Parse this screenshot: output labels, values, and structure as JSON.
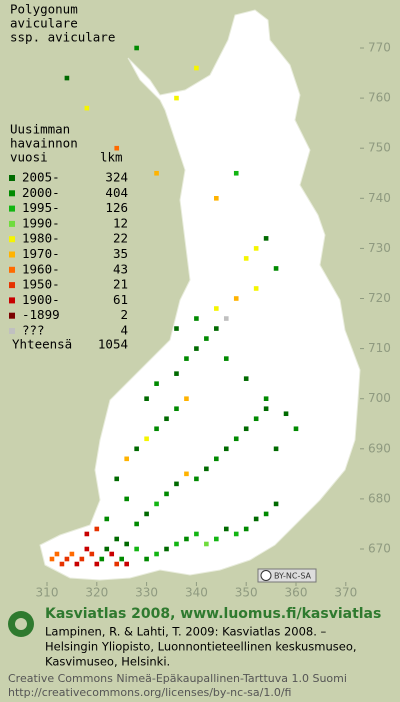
{
  "map": {
    "title": [
      "Polygonum",
      "aviculare",
      "ssp. aviculare"
    ],
    "legend_header": [
      "Uusimman",
      "havainnon",
      "vuosi"
    ],
    "count_header": "lkm",
    "legend": [
      {
        "period": "2005-",
        "count": 324,
        "color": "#006a00"
      },
      {
        "period": "2000-",
        "count": 404,
        "color": "#008a00"
      },
      {
        "period": "1995-",
        "count": 126,
        "color": "#12b512"
      },
      {
        "period": "1990-",
        "count": 12,
        "color": "#6fdc3c"
      },
      {
        "period": "1980-",
        "count": 22,
        "color": "#f5f500"
      },
      {
        "period": "1970-",
        "count": 35,
        "color": "#ffb300"
      },
      {
        "period": "1960-",
        "count": 43,
        "color": "#ff6a00"
      },
      {
        "period": "1950-",
        "count": 21,
        "color": "#e63200"
      },
      {
        "period": "1900-",
        "count": 61,
        "color": "#c80000"
      },
      {
        "period": "-1899",
        "count": 2,
        "color": "#7a0000"
      },
      {
        "period": "???",
        "count": 4,
        "color": "#c0c0c0"
      }
    ],
    "total_label": "Yhteensä",
    "total": 1054,
    "xticks": [
      310,
      320,
      330,
      340,
      350,
      360,
      370
    ],
    "yticks": [
      670,
      680,
      690,
      700,
      710,
      720,
      730,
      740,
      750,
      760,
      770
    ],
    "cells": [
      [
        311,
        668,
        6
      ],
      [
        312,
        669,
        6
      ],
      [
        313,
        667,
        7
      ],
      [
        314,
        668,
        7
      ],
      [
        315,
        669,
        6
      ],
      [
        316,
        667,
        8
      ],
      [
        317,
        668,
        7
      ],
      [
        318,
        670,
        8
      ],
      [
        319,
        669,
        7
      ],
      [
        320,
        667,
        8
      ],
      [
        321,
        668,
        1
      ],
      [
        322,
        670,
        0
      ],
      [
        323,
        669,
        8
      ],
      [
        324,
        667,
        7
      ],
      [
        325,
        668,
        1
      ],
      [
        326,
        667,
        8
      ],
      [
        318,
        673,
        8
      ],
      [
        320,
        674,
        7
      ],
      [
        322,
        676,
        1
      ],
      [
        324,
        672,
        0
      ],
      [
        326,
        671,
        0
      ],
      [
        328,
        670,
        2
      ],
      [
        330,
        668,
        1
      ],
      [
        332,
        669,
        2
      ],
      [
        334,
        670,
        0
      ],
      [
        336,
        671,
        2
      ],
      [
        338,
        672,
        1
      ],
      [
        340,
        673,
        2
      ],
      [
        342,
        671,
        3
      ],
      [
        344,
        672,
        2
      ],
      [
        346,
        674,
        0
      ],
      [
        348,
        673,
        2
      ],
      [
        350,
        674,
        1
      ],
      [
        352,
        676,
        0
      ],
      [
        354,
        677,
        1
      ],
      [
        356,
        679,
        0
      ],
      [
        328,
        675,
        1
      ],
      [
        330,
        677,
        0
      ],
      [
        332,
        679,
        2
      ],
      [
        334,
        681,
        1
      ],
      [
        336,
        683,
        0
      ],
      [
        338,
        685,
        5
      ],
      [
        340,
        684,
        1
      ],
      [
        342,
        686,
        0
      ],
      [
        344,
        688,
        1
      ],
      [
        346,
        690,
        0
      ],
      [
        348,
        692,
        1
      ],
      [
        350,
        694,
        0
      ],
      [
        352,
        696,
        1
      ],
      [
        354,
        698,
        0
      ],
      [
        326,
        680,
        1
      ],
      [
        324,
        684,
        0
      ],
      [
        326,
        688,
        5
      ],
      [
        328,
        690,
        0
      ],
      [
        330,
        692,
        4
      ],
      [
        332,
        694,
        1
      ],
      [
        334,
        696,
        0
      ],
      [
        336,
        698,
        1
      ],
      [
        338,
        700,
        5
      ],
      [
        330,
        700,
        0
      ],
      [
        332,
        703,
        1
      ],
      [
        336,
        705,
        0
      ],
      [
        338,
        708,
        1
      ],
      [
        340,
        710,
        0
      ],
      [
        342,
        712,
        1
      ],
      [
        344,
        714,
        0
      ],
      [
        346,
        708,
        1
      ],
      [
        350,
        704,
        0
      ],
      [
        354,
        700,
        1
      ],
      [
        358,
        697,
        0
      ],
      [
        360,
        694,
        1
      ],
      [
        356,
        690,
        0
      ],
      [
        336,
        714,
        0
      ],
      [
        340,
        716,
        1
      ],
      [
        344,
        718,
        4
      ],
      [
        348,
        720,
        5
      ],
      [
        352,
        722,
        4
      ],
      [
        350,
        728,
        4
      ],
      [
        354,
        732,
        0
      ],
      [
        344,
        740,
        5
      ],
      [
        336,
        760,
        4
      ],
      [
        328,
        770,
        1
      ],
      [
        340,
        766,
        4
      ],
      [
        332,
        745,
        5
      ],
      [
        324,
        750,
        6
      ],
      [
        318,
        758,
        4
      ],
      [
        314,
        764,
        0
      ],
      [
        348,
        745,
        2
      ],
      [
        352,
        730,
        4
      ],
      [
        356,
        726,
        1
      ],
      [
        346,
        716,
        10
      ]
    ],
    "license_badge": "BY-NC-SA",
    "footer_title": "Kasviatlas 2008, www.luomus.fi/kasviatlas",
    "citation": [
      "Lampinen, R. & Lahti, T. 2009: Kasviatlas 2008. –",
      "Helsingin Yliopisto, Luonnontieteellinen keskusmuseo,",
      "Kasvimuseo, Helsinki."
    ],
    "license": [
      "Creative Commons Nimeä-Epäkaupallinen-Tarttuva 1.0 Suomi",
      "http://creativecommons.org/licenses/by-nc-sa/1.0/fi"
    ]
  }
}
